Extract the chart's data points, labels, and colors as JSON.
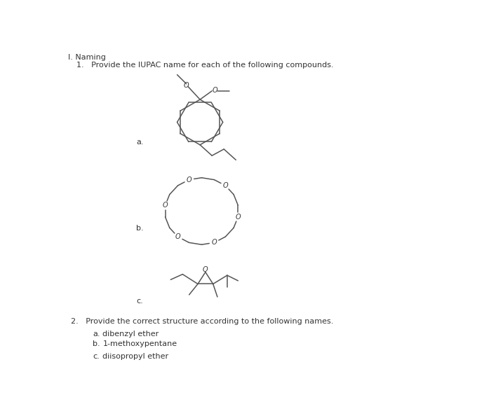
{
  "title_section": "I. Naming",
  "q1_text": "1.   Provide the IUPAC name for each of the following compounds.",
  "q2_text": "2.   Provide the correct structure according to the following names.",
  "label_a1": "a.",
  "label_b1": "b.",
  "label_c1": "c.",
  "label_a2": "a.",
  "label_b2": "b.",
  "label_c2": "c.",
  "answer_a2": "dibenzyl ether",
  "answer_b2": "1-methoxypentane",
  "answer_c2": "diisopropyl ether",
  "bg_color": "#ffffff",
  "line_color": "#555555",
  "text_color": "#333333",
  "font_size_main": 8.0,
  "font_size_label": 7.5,
  "font_size_O": 7.0
}
